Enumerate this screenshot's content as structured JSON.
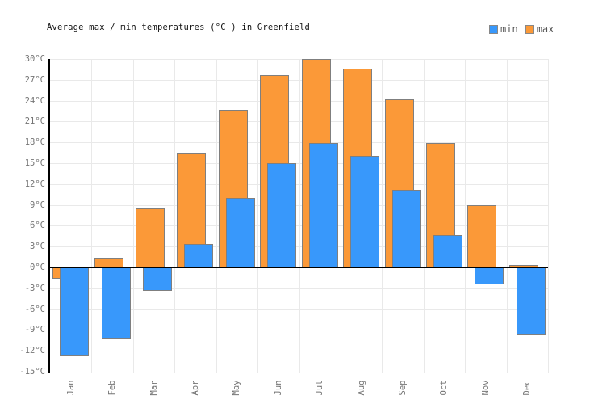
{
  "header": {
    "title": "Average max / min temperatures (°C ) in Greenfield"
  },
  "legend": {
    "items": [
      {
        "label": "min",
        "color": "#3898fb"
      },
      {
        "label": "max",
        "color": "#fb9938"
      }
    ]
  },
  "chart_data": {
    "type": "bar",
    "title": "Average max / min temperatures (°C ) in Greenfield",
    "categories": [
      "Jan",
      "Feb",
      "Mar",
      "Apr",
      "May",
      "Jun",
      "Jul",
      "Aug",
      "Sep",
      "Oct",
      "Nov",
      "Dec"
    ],
    "series": [
      {
        "name": "min",
        "color": "#3898fb",
        "values": [
          -12.7,
          -10.2,
          -3.4,
          3.4,
          10.0,
          15.0,
          17.9,
          16.1,
          11.2,
          4.6,
          -2.4,
          -9.7
        ]
      },
      {
        "name": "max",
        "color": "#fb9938",
        "values": [
          -1.6,
          1.4,
          8.5,
          16.5,
          22.7,
          27.7,
          30.0,
          28.6,
          24.2,
          17.9,
          8.9,
          0.4
        ]
      }
    ],
    "ylabel": "°C",
    "ylim": [
      -15,
      30
    ],
    "ytick_step": 3,
    "ytick_suffix": "°C",
    "grid": true,
    "legend_position": "top-right",
    "styles": {
      "bar_border": "#7f7f7f",
      "zero_line": "#000000",
      "axis_line": "#000000",
      "grid_color": "#e9e9e9",
      "tick_label_color": "#757575"
    }
  }
}
